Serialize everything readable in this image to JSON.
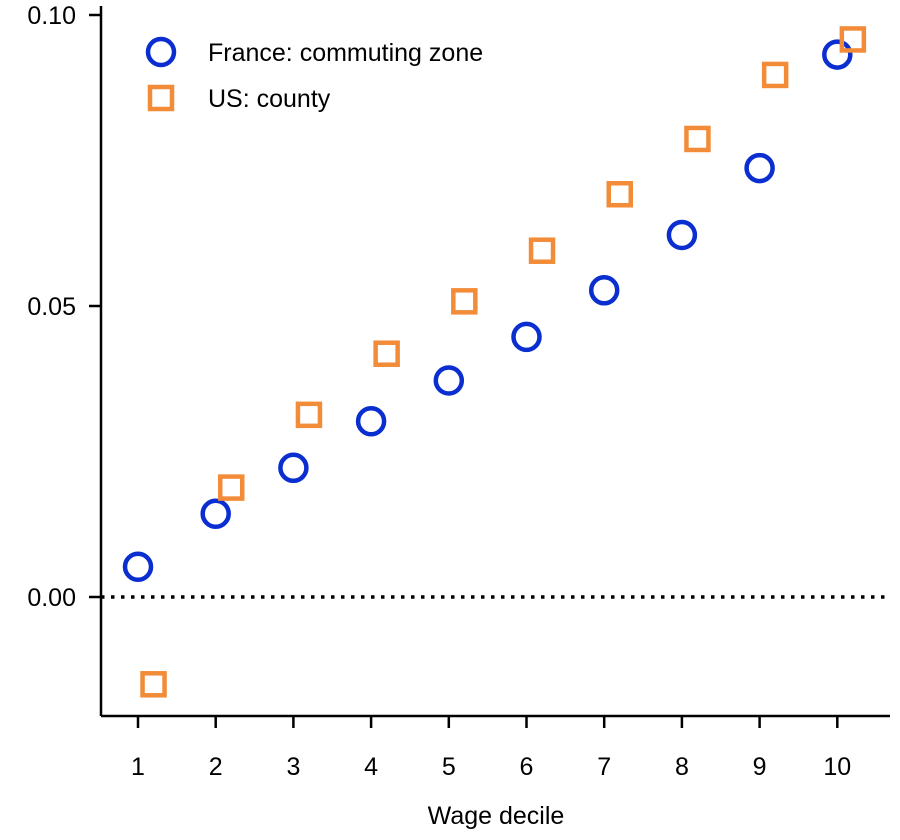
{
  "chart_data": {
    "type": "scatter",
    "title": "",
    "xlabel": "Wage decile",
    "ylabel": "",
    "xlim": [
      0.5,
      10.7
    ],
    "ylim": [
      -0.02,
      0.1
    ],
    "x_ticks": [
      1,
      2,
      3,
      4,
      5,
      6,
      7,
      8,
      9,
      10
    ],
    "y_ticks": [
      {
        "value": 0.0,
        "label": "0.00"
      },
      {
        "value": 0.05,
        "label": "0.05"
      },
      {
        "value": 0.1,
        "label": "0.10"
      }
    ],
    "reference_line": {
      "y": 0.0,
      "style": "dotted"
    },
    "legend_position": "top-left",
    "series": [
      {
        "name": "France: commuting zone",
        "marker": "circle",
        "color": "#0a2ecf",
        "x_offset": 0,
        "x": [
          1,
          2,
          3,
          4,
          5,
          6,
          7,
          8,
          9,
          10
        ],
        "y": [
          0.0052,
          0.0143,
          0.0222,
          0.0302,
          0.0372,
          0.0447,
          0.0527,
          0.0622,
          0.0737,
          0.0932
        ]
      },
      {
        "name": "US: county",
        "marker": "square",
        "color": "#f28c38",
        "x_offset": 0.2,
        "x": [
          1,
          2,
          3,
          4,
          5,
          6,
          7,
          8,
          9,
          10
        ],
        "y": [
          -0.015,
          0.0188,
          0.0313,
          0.0418,
          0.0508,
          0.0595,
          0.0692,
          0.0787,
          0.0897,
          0.0958
        ]
      }
    ]
  }
}
